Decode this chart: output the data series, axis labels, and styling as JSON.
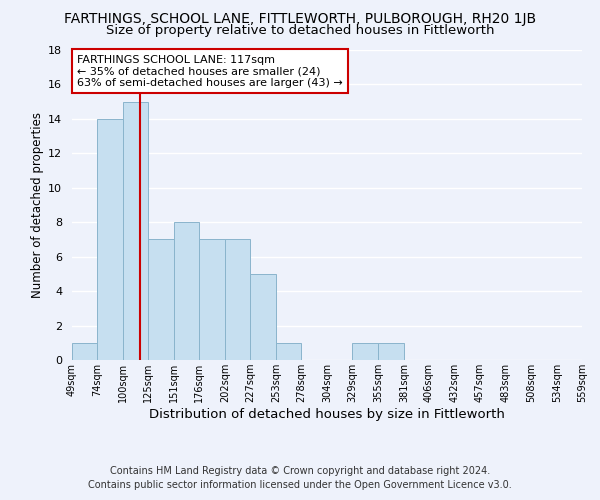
{
  "title": "FARTHINGS, SCHOOL LANE, FITTLEWORTH, PULBOROUGH, RH20 1JB",
  "subtitle": "Size of property relative to detached houses in Fittleworth",
  "xlabel": "Distribution of detached houses by size in Fittleworth",
  "ylabel": "Number of detached properties",
  "bin_edges": [
    49,
    74,
    100,
    125,
    151,
    176,
    202,
    227,
    253,
    278,
    304,
    329,
    355,
    381,
    406,
    432,
    457,
    483,
    508,
    534,
    559
  ],
  "bin_labels": [
    "49sqm",
    "74sqm",
    "100sqm",
    "125sqm",
    "151sqm",
    "176sqm",
    "202sqm",
    "227sqm",
    "253sqm",
    "278sqm",
    "304sqm",
    "329sqm",
    "355sqm",
    "381sqm",
    "406sqm",
    "432sqm",
    "457sqm",
    "483sqm",
    "508sqm",
    "534sqm",
    "559sqm"
  ],
  "counts": [
    1,
    14,
    15,
    7,
    8,
    7,
    7,
    5,
    1,
    0,
    0,
    1,
    1,
    0,
    0,
    0,
    0,
    0,
    0,
    0
  ],
  "bar_color": "#c6dff0",
  "bar_edge_color": "#8ab4cc",
  "reference_line_x": 117,
  "reference_line_color": "#cc0000",
  "annotation_text": "FARTHINGS SCHOOL LANE: 117sqm\n← 35% of detached houses are smaller (24)\n63% of semi-detached houses are larger (43) →",
  "annotation_box_color": "#ffffff",
  "annotation_box_edge_color": "#cc0000",
  "ylim": [
    0,
    18
  ],
  "yticks": [
    0,
    2,
    4,
    6,
    8,
    10,
    12,
    14,
    16,
    18
  ],
  "footer_line1": "Contains HM Land Registry data © Crown copyright and database right 2024.",
  "footer_line2": "Contains public sector information licensed under the Open Government Licence v3.0.",
  "background_color": "#eef2fb",
  "grid_color": "#ffffff",
  "title_fontsize": 10,
  "subtitle_fontsize": 9.5,
  "xlabel_fontsize": 9.5,
  "ylabel_fontsize": 8.5,
  "footer_fontsize": 7
}
